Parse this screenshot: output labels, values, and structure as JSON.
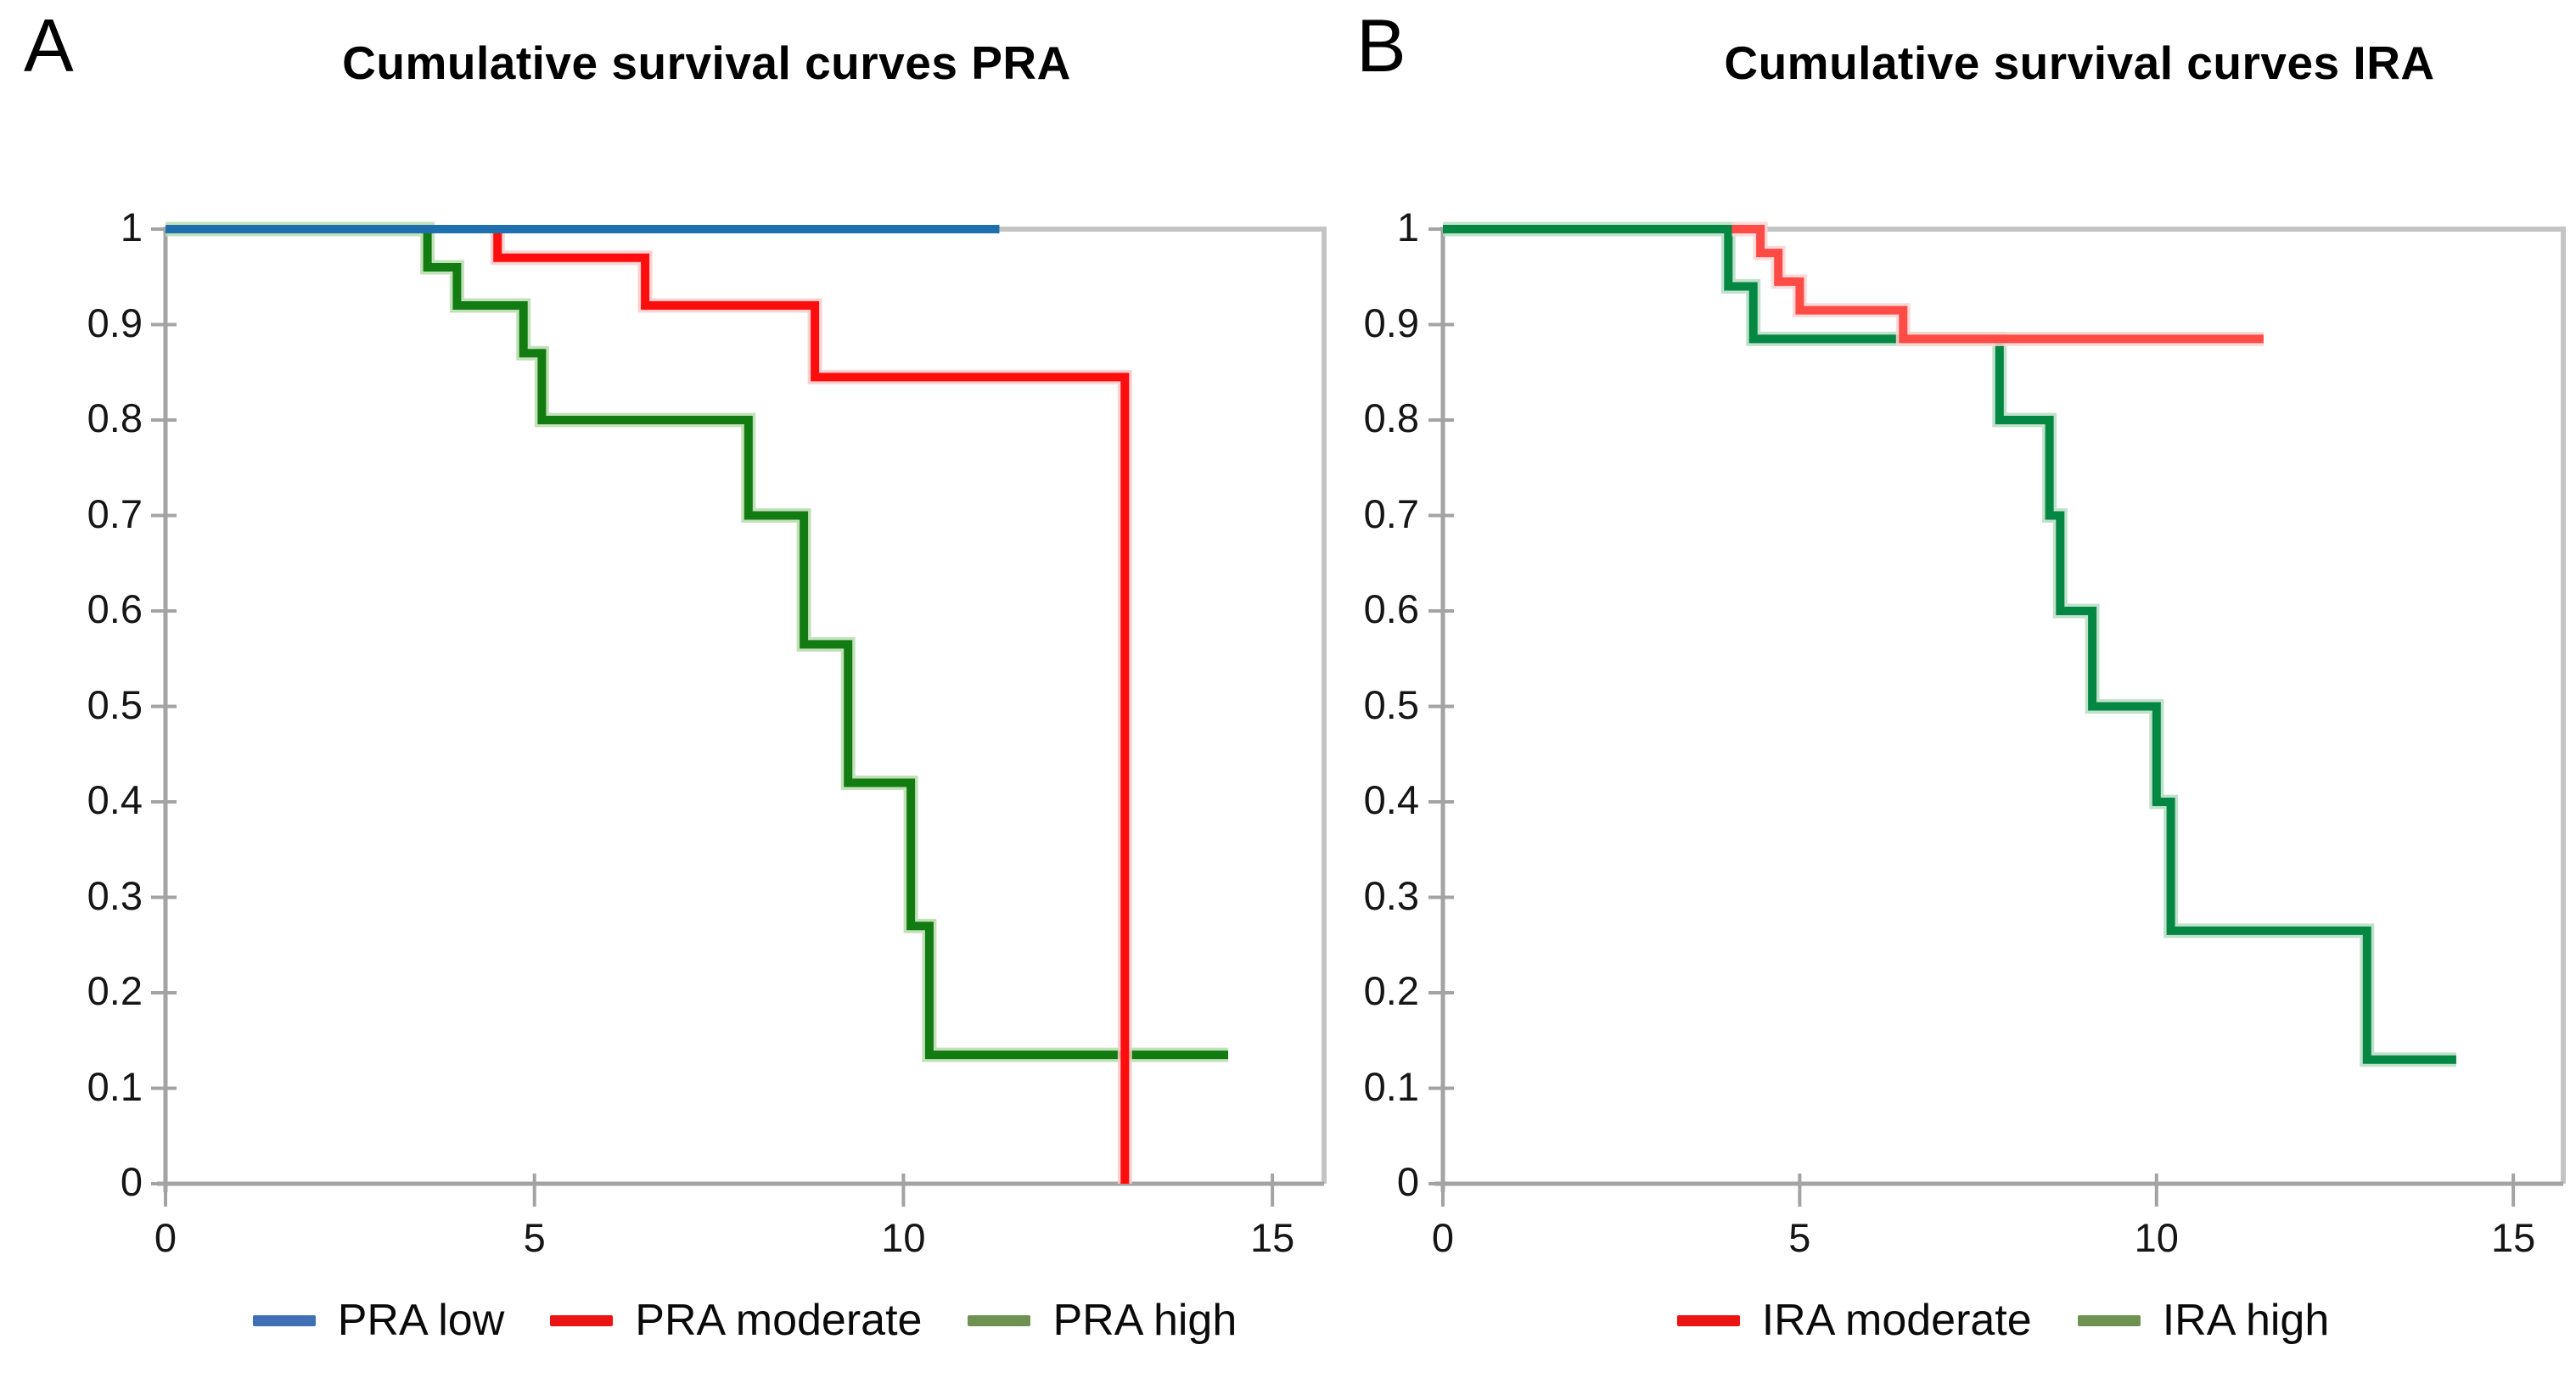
{
  "figure": {
    "kind": "kaplan-meier-survival-figure",
    "background": "#ffffff",
    "frame_color": "#c4c4c4",
    "axis_color": "#a3a3a3",
    "text_color": "#000000"
  },
  "chart_data": [
    {
      "type": "line",
      "subtype": "step-survival",
      "panel_label": "A",
      "title": "Cumulative survival curves PRA",
      "xlabel": "",
      "ylabel": "",
      "xlim": [
        0,
        15.7
      ],
      "ylim": [
        0,
        1
      ],
      "grid": false,
      "legend_position": "bottom",
      "x_ticks": [
        0,
        5,
        10,
        15
      ],
      "x_tick_labels": [
        "0",
        "5",
        "10",
        "15"
      ],
      "y_ticks": [
        1,
        0.9,
        0.8,
        0.7,
        0.6,
        0.5,
        0.4,
        0.3,
        0.2,
        0.1,
        0
      ],
      "y_tick_labels": [
        "1",
        "0.9",
        "0.8",
        "0.7",
        "0.6",
        "0.5",
        "0.4",
        "0.3",
        "0.2",
        "0.1",
        "0"
      ],
      "series": [
        {
          "name": "PRA high",
          "color": "#127c12",
          "halo": "#b7dcab",
          "points": [
            [
              0,
              1
            ],
            [
              3.55,
              1
            ],
            [
              3.55,
              0.96
            ],
            [
              3.95,
              0.96
            ],
            [
              3.95,
              0.92
            ],
            [
              4.85,
              0.92
            ],
            [
              4.85,
              0.87
            ],
            [
              5.1,
              0.87
            ],
            [
              5.1,
              0.8
            ],
            [
              7.9,
              0.8
            ],
            [
              7.9,
              0.7
            ],
            [
              8.65,
              0.7
            ],
            [
              8.65,
              0.565
            ],
            [
              9.25,
              0.565
            ],
            [
              9.25,
              0.42
            ],
            [
              10.1,
              0.42
            ],
            [
              10.1,
              0.27
            ],
            [
              10.35,
              0.27
            ],
            [
              10.35,
              0.135
            ],
            [
              14.4,
              0.135
            ]
          ]
        },
        {
          "name": "PRA moderate",
          "color": "#fd0d0d",
          "halo": "#ffc9c9",
          "points": [
            [
              4.5,
              1
            ],
            [
              4.5,
              0.97
            ],
            [
              6.5,
              0.97
            ],
            [
              6.5,
              0.92
            ],
            [
              8.8,
              0.92
            ],
            [
              8.8,
              0.845
            ],
            [
              13,
              0.845
            ],
            [
              13,
              0
            ]
          ]
        },
        {
          "name": "PRA low",
          "color": "#1e6fae",
          "halo": null,
          "points": [
            [
              0,
              1
            ],
            [
              11.3,
              1
            ]
          ]
        }
      ],
      "legend_items": [
        {
          "label": "PRA low",
          "color": "#3f6fb5"
        },
        {
          "label": "PRA moderate",
          "color": "#ec1313"
        },
        {
          "label": "PRA high",
          "color": "#6f9151"
        }
      ]
    },
    {
      "type": "line",
      "subtype": "step-survival",
      "panel_label": "B",
      "title": "Cumulative survival curves IRA",
      "xlabel": "",
      "ylabel": "",
      "xlim": [
        0,
        15.7
      ],
      "ylim": [
        0,
        1
      ],
      "grid": false,
      "legend_position": "bottom",
      "x_ticks": [
        0,
        5,
        10,
        15
      ],
      "x_tick_labels": [
        "0",
        "5",
        "10",
        "15"
      ],
      "y_ticks": [
        1,
        0.9,
        0.8,
        0.7,
        0.6,
        0.5,
        0.4,
        0.3,
        0.2,
        0.1,
        0
      ],
      "y_tick_labels": [
        "1",
        "0.9",
        "0.8",
        "0.7",
        "0.6",
        "0.5",
        "0.4",
        "0.3",
        "0.2",
        "0.1",
        "0"
      ],
      "series": [
        {
          "name": "IRA high",
          "color": "#048742",
          "halo": "#b5dcc3",
          "points": [
            [
              0,
              1
            ],
            [
              4.0,
              1
            ],
            [
              4.0,
              0.94
            ],
            [
              4.35,
              0.94
            ],
            [
              4.35,
              0.885
            ],
            [
              7.8,
              0.885
            ],
            [
              7.8,
              0.8
            ],
            [
              8.5,
              0.8
            ],
            [
              8.5,
              0.7
            ],
            [
              8.65,
              0.7
            ],
            [
              8.65,
              0.6
            ],
            [
              9.1,
              0.6
            ],
            [
              9.1,
              0.5
            ],
            [
              10.0,
              0.5
            ],
            [
              10.0,
              0.4
            ],
            [
              10.2,
              0.4
            ],
            [
              10.2,
              0.265
            ],
            [
              12.95,
              0.265
            ],
            [
              12.95,
              0.13
            ],
            [
              14.2,
              0.13
            ]
          ]
        },
        {
          "name": "IRA moderate",
          "color": "#ff4b45",
          "halo": "#ffd3d1",
          "points": [
            [
              4.05,
              1
            ],
            [
              4.45,
              1
            ],
            [
              4.45,
              0.975
            ],
            [
              4.7,
              0.975
            ],
            [
              4.7,
              0.945
            ],
            [
              5.0,
              0.945
            ],
            [
              5.0,
              0.915
            ],
            [
              6.45,
              0.915
            ],
            [
              6.45,
              0.885
            ],
            [
              11.5,
              0.885
            ]
          ]
        }
      ],
      "legend_items": [
        {
          "label": "IRA moderate",
          "color": "#ec1313"
        },
        {
          "label": "IRA high",
          "color": "#6f9151"
        }
      ]
    }
  ]
}
